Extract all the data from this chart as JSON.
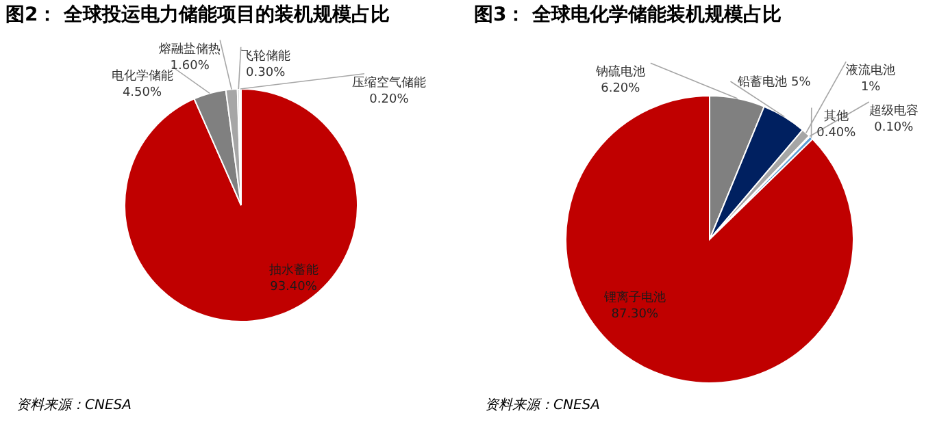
{
  "chart_data": [
    {
      "type": "pie",
      "title": "图2：    全球投运电力储能项目的装机规模占比",
      "categories": [
        "抽水蓄能",
        "电化学储能",
        "熔融盐储热",
        "飞轮储能",
        "压缩空气储能"
      ],
      "values": [
        93.4,
        4.5,
        1.6,
        0.3,
        0.2
      ],
      "colors": [
        "#c00000",
        "#808080",
        "#a6a6a6",
        "#d9d9d9",
        "#bfbfbf"
      ],
      "value_labels": [
        "93.40%",
        "4.50%",
        "1.60%",
        "0.30%",
        "0.20%"
      ],
      "annotations": [
        "资料来源：CNESA"
      ]
    },
    {
      "type": "pie",
      "title": "图3：    全球电化学储能装机规模占比",
      "categories": [
        "钠硫电池",
        "铅蓄电池",
        "液流电池",
        "超级电容",
        "其他",
        "锂离子电池"
      ],
      "values": [
        6.2,
        5,
        1,
        0.1,
        0.4,
        87.3
      ],
      "colors": [
        "#808080",
        "#002060",
        "#a6a6a6",
        "#d9d9d9",
        "#5b9bd5",
        "#c00000"
      ],
      "value_labels": [
        "6.20%",
        "5%",
        "1%",
        "0.10%",
        "0.40%",
        "87.30%"
      ],
      "annotations": [
        "资料来源：CNESA"
      ]
    }
  ]
}
